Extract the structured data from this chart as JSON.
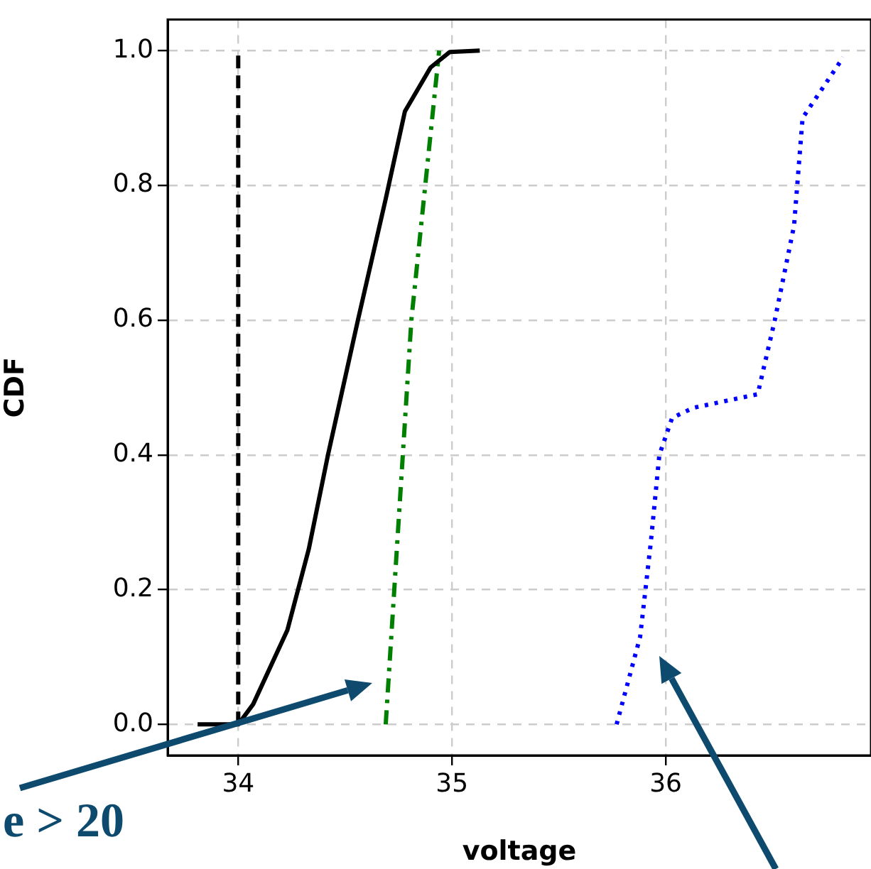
{
  "chart_data": {
    "type": "line",
    "xlabel": "voltage",
    "ylabel": "CDF",
    "xlim": [
      33.67,
      36.96
    ],
    "ylim": [
      -0.046,
      1.046
    ],
    "xticks": [
      34,
      35,
      36
    ],
    "yticks": [
      {
        "value": 0,
        "label": "0.0"
      },
      {
        "value": 0.2,
        "label": "0.2"
      },
      {
        "value": 0.4,
        "label": "0.4"
      },
      {
        "value": 0.6,
        "label": "0.6"
      },
      {
        "value": 0.8,
        "label": "0.8"
      },
      {
        "value": 1,
        "label": "1.0"
      }
    ],
    "grid": true,
    "legend": false,
    "marker": "none",
    "annotations": [
      "e > 20"
    ],
    "series": [
      {
        "color": "#000000",
        "line_style": "solid",
        "x": [
          33.81,
          34.0,
          34.07,
          34.23,
          34.33,
          34.42,
          34.56,
          34.69,
          34.78,
          34.9,
          34.99,
          35.13
        ],
        "values": [
          0,
          0,
          0.03,
          0.14,
          0.26,
          0.4,
          0.6,
          0.78,
          0.91,
          0.975,
          0.998,
          1.0
        ]
      },
      {
        "color": "#000000",
        "line_style": "dashed",
        "x": [
          34,
          34
        ],
        "values": [
          0,
          1
        ]
      },
      {
        "color": "#008000",
        "line_style": "dashdot",
        "x": [
          34.69,
          34.81,
          34.94
        ],
        "values": [
          0,
          0.6,
          1.0
        ]
      },
      {
        "color": "#0000ff",
        "line_style": "dotted",
        "x": [
          35.77,
          35.88,
          35.93,
          35.97,
          36.03,
          36.13,
          36.43,
          36.51,
          36.6,
          36.64,
          36.83
        ],
        "values": [
          0,
          0.13,
          0.27,
          0.4,
          0.455,
          0.47,
          0.49,
          0.6,
          0.74,
          0.9,
          0.99
        ]
      }
    ]
  }
}
